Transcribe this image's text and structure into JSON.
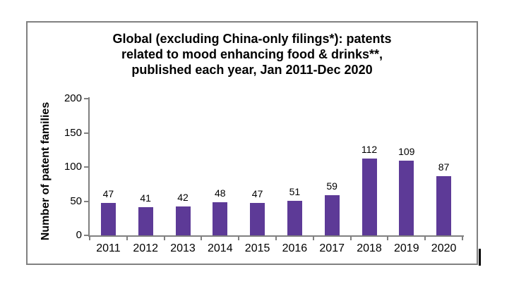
{
  "chart_data": {
    "type": "bar",
    "title": "Global (excluding China-only filings*): patents related to mood enhancing food & drinks**, published each year, Jan 2011-Dec 2020",
    "title_lines": [
      "Global (excluding China-only filings*): patents",
      "related to mood enhancing food & drinks**,",
      "published each year, Jan 2011-Dec 2020"
    ],
    "ylabel": "Number of patent families",
    "xlabel": "",
    "categories": [
      "2011",
      "2012",
      "2013",
      "2014",
      "2015",
      "2016",
      "2017",
      "2018",
      "2019",
      "2020"
    ],
    "values": [
      47,
      41,
      42,
      48,
      47,
      51,
      59,
      112,
      109,
      87
    ],
    "ylim": [
      0,
      200
    ],
    "yticks": [
      0,
      50,
      100,
      150,
      200
    ],
    "grid": false,
    "legend": "none",
    "data_labels": true,
    "colors": {
      "bar": "#5D3A97",
      "axis": "#808080",
      "frame_border": "#808080",
      "text": "#000000"
    }
  }
}
